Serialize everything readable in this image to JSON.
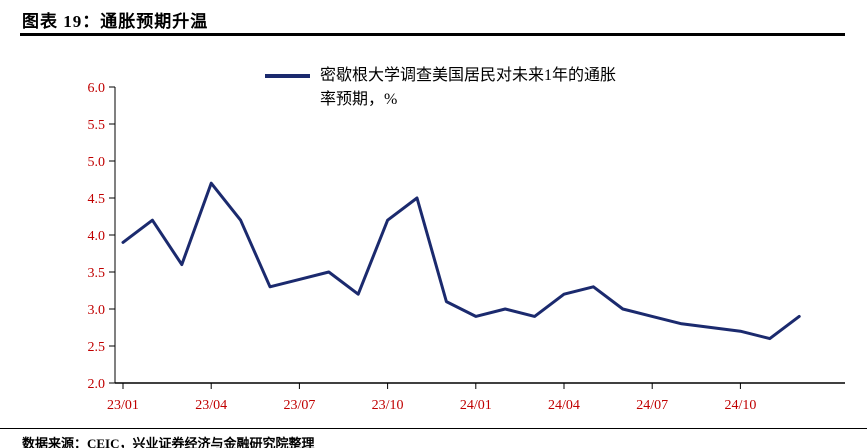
{
  "header": {
    "title": "图表 19：通胀预期升温"
  },
  "footer": {
    "source": "数据来源：CEIC，兴业证券经济与金融研究院整理"
  },
  "chart_data": {
    "type": "line",
    "legend": "密歇根大学调查美国居民对未来1年的通胀率预期，%",
    "x": [
      "23/01",
      "23/02",
      "23/03",
      "23/04",
      "23/05",
      "23/06",
      "23/07",
      "23/08",
      "23/09",
      "23/10",
      "23/11",
      "23/12",
      "24/01",
      "24/02",
      "24/03",
      "24/04",
      "24/05",
      "24/06",
      "24/07",
      "24/08",
      "24/09",
      "24/10",
      "24/11",
      "24/12"
    ],
    "values": [
      3.9,
      4.2,
      3.6,
      4.7,
      4.2,
      3.3,
      3.4,
      3.5,
      3.2,
      4.2,
      4.5,
      3.1,
      2.9,
      3.0,
      2.9,
      3.2,
      3.3,
      3.0,
      2.9,
      2.8,
      2.75,
      2.7,
      2.6,
      2.9
    ],
    "ylim": [
      2.0,
      6.0
    ],
    "ytick_step": 0.5,
    "ytick_labels": [
      "2.0",
      "2.5",
      "3.0",
      "3.5",
      "4.0",
      "4.5",
      "5.0",
      "5.5",
      "6.0"
    ],
    "xtick_labels": [
      "23/01",
      "23/04",
      "23/07",
      "23/10",
      "24/01",
      "24/04",
      "24/07",
      "24/10"
    ],
    "line_color": "#1B2A6E",
    "tick_label_color": "#C00000",
    "axis_color": "#000000",
    "grid": false,
    "legend_position": "top"
  }
}
